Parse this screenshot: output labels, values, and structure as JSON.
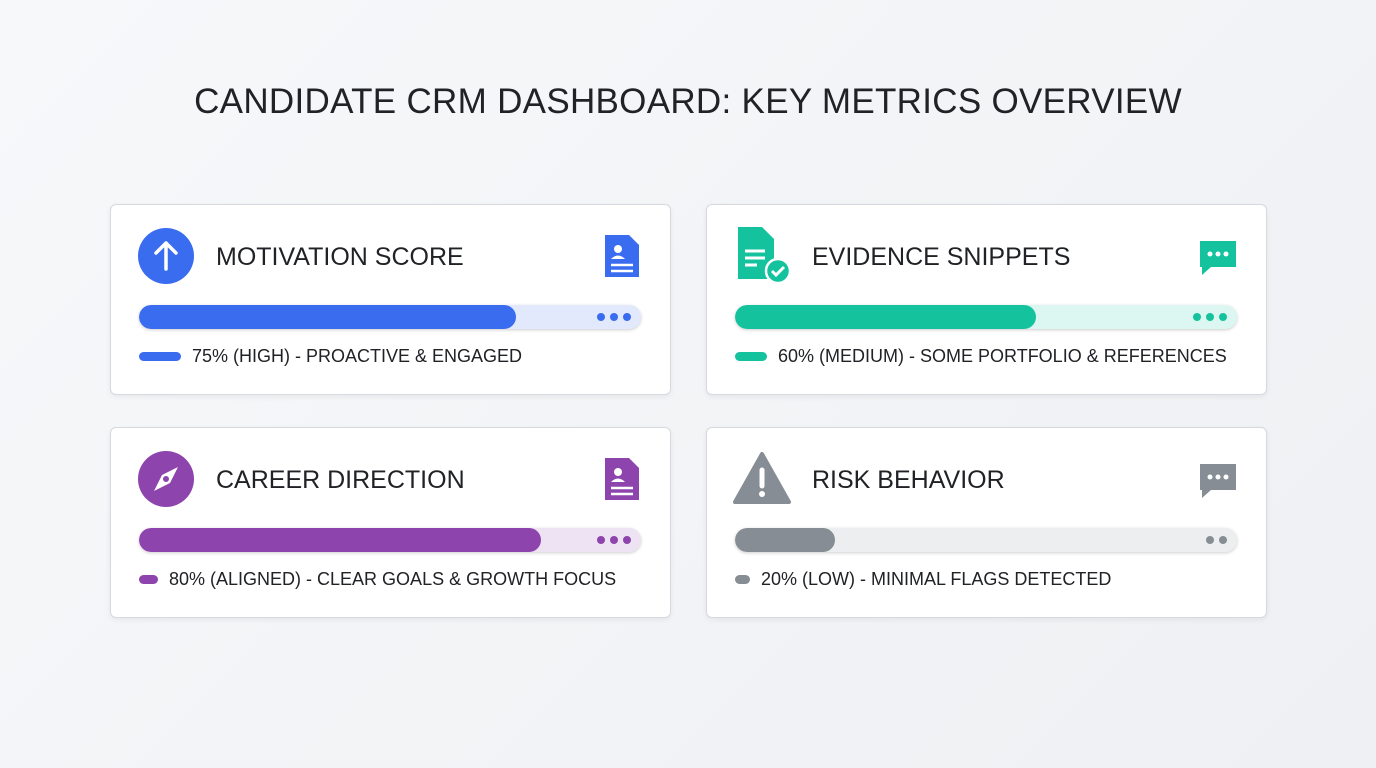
{
  "title": "CANDIDATE CRM DASHBOARD: KEY METRICS OVERVIEW",
  "range": [
    0,
    100
  ],
  "cards": [
    {
      "title": "MOTIVATION SCORE",
      "value": 75,
      "label": "75% (HIGH) - PROACTIVE & ENGAGED",
      "color": "#3a6cf0"
    },
    {
      "title": "EVIDENCE SNIPPETS",
      "value": 60,
      "label": "60% (MEDIUM) - SOME PORTFOLIO & REFERENCES",
      "color": "#14c39e"
    },
    {
      "title": "CAREER DIRECTION",
      "value": 80,
      "label": "80% (ALIGNED) - CLEAR GOALS & GROWTH FOCUS",
      "color": "#8e44ad"
    },
    {
      "title": "RISK BEHAVIOR",
      "value": 20,
      "label": "20% (LOW) - MINIMAL FLAGS DETECTED",
      "color": "#868d95"
    }
  ]
}
